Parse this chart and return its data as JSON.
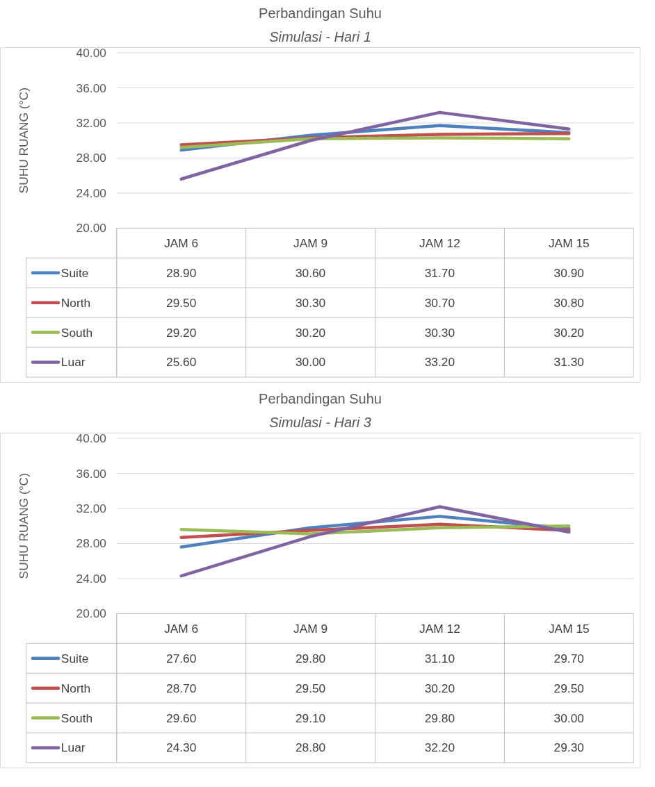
{
  "chart_data": [
    {
      "type": "line",
      "title": "Perbandingan Suhu",
      "subtitle": "Simulasi - Hari 1",
      "ylabel": "SUHU RUANG (°C)",
      "categories": [
        "JAM 6",
        "JAM 9",
        "JAM 12",
        "JAM 15"
      ],
      "ylim": [
        20,
        40
      ],
      "yticks": [
        {
          "value": 20,
          "label": "20.00"
        },
        {
          "value": 24,
          "label": "24.00"
        },
        {
          "value": 28,
          "label": "28.00"
        },
        {
          "value": 32,
          "label": "32.00"
        },
        {
          "value": 36,
          "label": "36.00"
        },
        {
          "value": 40,
          "label": "40.00"
        }
      ],
      "grid": "y",
      "legend": "bottom",
      "series": [
        {
          "name": "Suite",
          "color": "#4f81bd",
          "values": [
            28.9,
            30.6,
            31.7,
            30.9
          ],
          "value_labels": [
            "28.90",
            "30.60",
            "31.70",
            "30.90"
          ]
        },
        {
          "name": "North",
          "color": "#c0504d",
          "values": [
            29.5,
            30.3,
            30.7,
            30.8
          ],
          "value_labels": [
            "29.50",
            "30.30",
            "30.70",
            "30.80"
          ]
        },
        {
          "name": "South",
          "color": "#9bbb59",
          "values": [
            29.2,
            30.2,
            30.3,
            30.2
          ],
          "value_labels": [
            "29.20",
            "30.20",
            "30.30",
            "30.20"
          ]
        },
        {
          "name": "Luar",
          "color": "#8064a2",
          "values": [
            25.6,
            30.0,
            33.2,
            31.3
          ],
          "value_labels": [
            "25.60",
            "30.00",
            "33.20",
            "31.30"
          ]
        }
      ]
    },
    {
      "type": "line",
      "title": "Perbandingan Suhu",
      "subtitle": "Simulasi - Hari 3",
      "ylabel": "SUHU RUANG (°C)",
      "categories": [
        "JAM 6",
        "JAM 9",
        "JAM 12",
        "JAM 15"
      ],
      "ylim": [
        20,
        40
      ],
      "yticks": [
        {
          "value": 20,
          "label": "20.00"
        },
        {
          "value": 24,
          "label": "24.00"
        },
        {
          "value": 28,
          "label": "28.00"
        },
        {
          "value": 32,
          "label": "32.00"
        },
        {
          "value": 36,
          "label": "36.00"
        },
        {
          "value": 40,
          "label": "40.00"
        }
      ],
      "grid": "y",
      "legend": "bottom",
      "series": [
        {
          "name": "Suite",
          "color": "#4f81bd",
          "values": [
            27.6,
            29.8,
            31.1,
            29.7
          ],
          "value_labels": [
            "27.60",
            "29.80",
            "31.10",
            "29.70"
          ]
        },
        {
          "name": "North",
          "color": "#c0504d",
          "values": [
            28.7,
            29.5,
            30.2,
            29.5
          ],
          "value_labels": [
            "28.70",
            "29.50",
            "30.20",
            "29.50"
          ]
        },
        {
          "name": "South",
          "color": "#9bbb59",
          "values": [
            29.6,
            29.1,
            29.8,
            30.0
          ],
          "value_labels": [
            "29.60",
            "29.10",
            "29.80",
            "30.00"
          ]
        },
        {
          "name": "Luar",
          "color": "#8064a2",
          "values": [
            24.3,
            28.8,
            32.2,
            29.3
          ],
          "value_labels": [
            "24.30",
            "28.80",
            "32.20",
            "29.30"
          ]
        }
      ]
    }
  ]
}
